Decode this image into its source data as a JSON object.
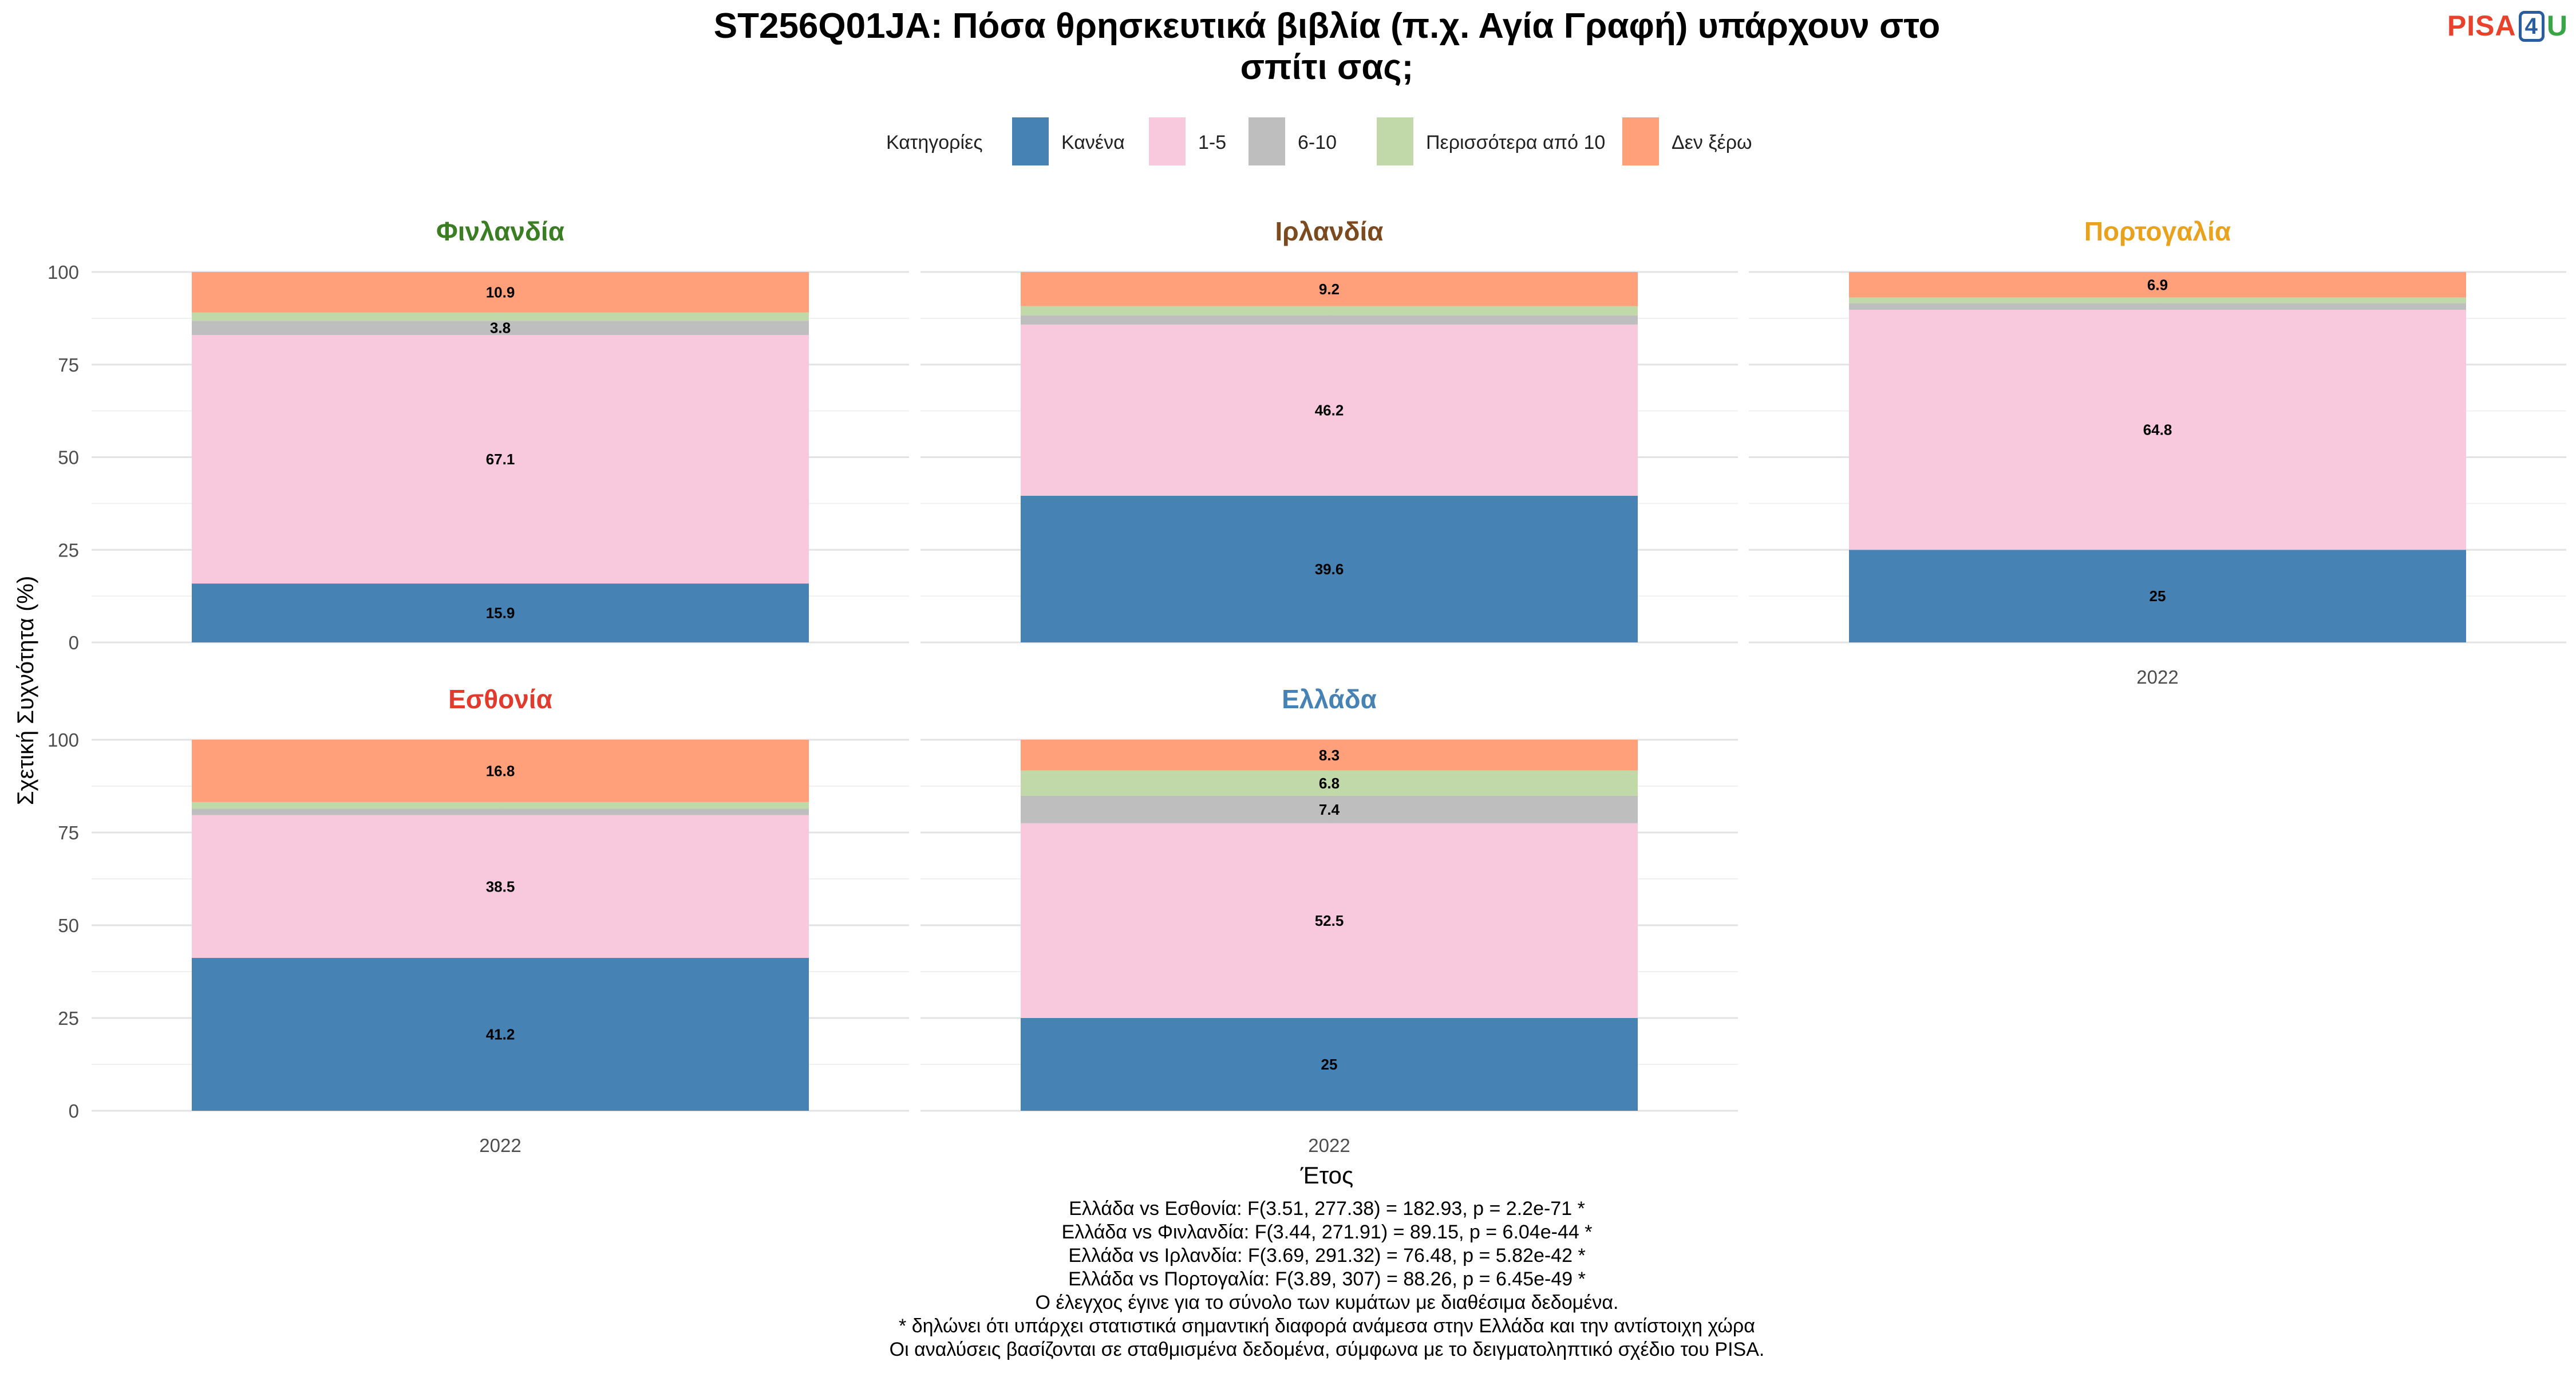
{
  "chart_data": {
    "type": "bar",
    "stacked": true,
    "title": "ST256Q01JA: Πόσα θρησκευτικά βιβλία (π.χ. Αγία Γραφή) υπάρχουν στο σπίτι σας;",
    "title_lines": [
      "ST256Q01JA: Πόσα θρησκευτικά βιβλία (π.χ. Αγία Γραφή) υπάρχουν στο",
      "σπίτι σας;"
    ],
    "xlabel": "Έτος",
    "ylabel": "Σχετική Συχνότητα (%)",
    "ylim": [
      0,
      100
    ],
    "yticks": [
      "0",
      "25",
      "50",
      "75",
      "100"
    ],
    "grid": true,
    "legend": {
      "title": "Κατηγορίες",
      "position": "top",
      "entries": [
        {
          "label": "Κανένα",
          "color": "#4682b4"
        },
        {
          "label": "1-5",
          "color": "#f8c8dc"
        },
        {
          "label": "6-10",
          "color": "#bebebe"
        },
        {
          "label": "Περισσότερα από 10",
          "color": "#c1d8a8"
        },
        {
          "label": "Δεν ξέρω",
          "color": "#ffa07a"
        }
      ]
    },
    "panels": [
      {
        "country": "Φινλανδία",
        "title_color": "#3a7d22",
        "x": "2022",
        "values": [
          15.9,
          67.1,
          3.8,
          2.3,
          10.9
        ],
        "labels": [
          "15.9",
          "67.1",
          "3.8",
          "",
          "10.9"
        ]
      },
      {
        "country": "Ιρλανδία",
        "title_color": "#7b4a1e",
        "x": "2022",
        "values": [
          39.6,
          46.2,
          2.5,
          2.5,
          9.2
        ],
        "labels": [
          "39.6",
          "46.2",
          "",
          "",
          "9.2"
        ]
      },
      {
        "country": "Πορτογαλία",
        "title_color": "#e8a21d",
        "x": "2022",
        "values": [
          25,
          64.8,
          1.8,
          1.5,
          6.9
        ],
        "labels": [
          "25",
          "64.8",
          "",
          "",
          "6.9"
        ]
      },
      {
        "country": "Εσθονία",
        "title_color": "#e23a2c",
        "x": "2022",
        "values": [
          41.2,
          38.5,
          1.7,
          1.8,
          16.8
        ],
        "labels": [
          "41.2",
          "38.5",
          "",
          "",
          "16.8"
        ]
      },
      {
        "country": "Ελλάδα",
        "title_color": "#4682b4",
        "x": "2022",
        "values": [
          25,
          52.5,
          7.4,
          6.8,
          8.3
        ],
        "labels": [
          "25",
          "52.5",
          "7.4",
          "6.8",
          "8.3"
        ]
      }
    ],
    "footnotes": [
      "Ελλάδα vs Εσθονία: F(3.51, 277.38) = 182.93, p = 2.2e-71 *",
      "Ελλάδα vs Φινλανδία: F(3.44, 271.91) = 89.15, p = 6.04e-44 *",
      "Ελλάδα vs Ιρλανδία: F(3.69, 291.32) = 76.48, p = 5.82e-42 *",
      "Ελλάδα vs Πορτογαλία: F(3.89, 307) = 88.26, p = 6.45e-49 *",
      "Ο έλεγχος έγινε για το σύνολο των κυμάτων με διαθέσιμα δεδομένα.",
      "* δηλώνει ότι υπάρχει στατιστικά σημαντική διαφορά ανάμεσα στην Ελλάδα και την αντίστοιχη χώρα",
      "Οι αναλύσεις βασίζονται σε σταθμισμένα δεδομένα, σύμφωνα με το δειγματοληπτικό σχέδιο του PISA."
    ]
  },
  "logo": {
    "part1": "PISA",
    "part2": "4",
    "part3": "U"
  }
}
